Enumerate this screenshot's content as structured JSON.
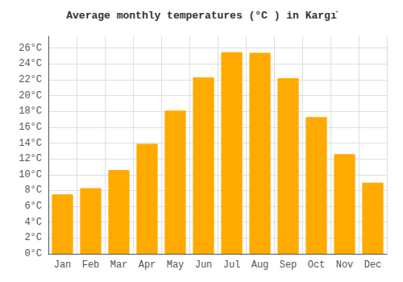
{
  "chart_data": {
    "type": "bar",
    "title": "Average monthly temperatures (°C ) in Kargı̇",
    "categories": [
      "Jan",
      "Feb",
      "Mar",
      "Apr",
      "May",
      "Jun",
      "Jul",
      "Aug",
      "Sep",
      "Oct",
      "Nov",
      "Dec"
    ],
    "values": [
      7.5,
      8.3,
      10.6,
      13.9,
      18.1,
      22.3,
      25.5,
      25.4,
      22.2,
      17.3,
      12.6,
      9.0
    ],
    "color": "#FFAA00",
    "ylim": [
      0,
      27.5
    ],
    "yticks": [
      {
        "value": 0,
        "label": "0°C"
      },
      {
        "value": 2,
        "label": "2°C"
      },
      {
        "value": 4,
        "label": "4°C"
      },
      {
        "value": 6,
        "label": "6°C"
      },
      {
        "value": 8,
        "label": "8°C"
      },
      {
        "value": 10,
        "label": "10°C"
      },
      {
        "value": 12,
        "label": "12°C"
      },
      {
        "value": 14,
        "label": "14°C"
      },
      {
        "value": 16,
        "label": "16°C"
      },
      {
        "value": 18,
        "label": "18°C"
      },
      {
        "value": 20,
        "label": "20°C"
      },
      {
        "value": 22,
        "label": "22°C"
      },
      {
        "value": 24,
        "label": "24°C"
      },
      {
        "value": 26,
        "label": "26°C"
      }
    ],
    "grid": true
  }
}
